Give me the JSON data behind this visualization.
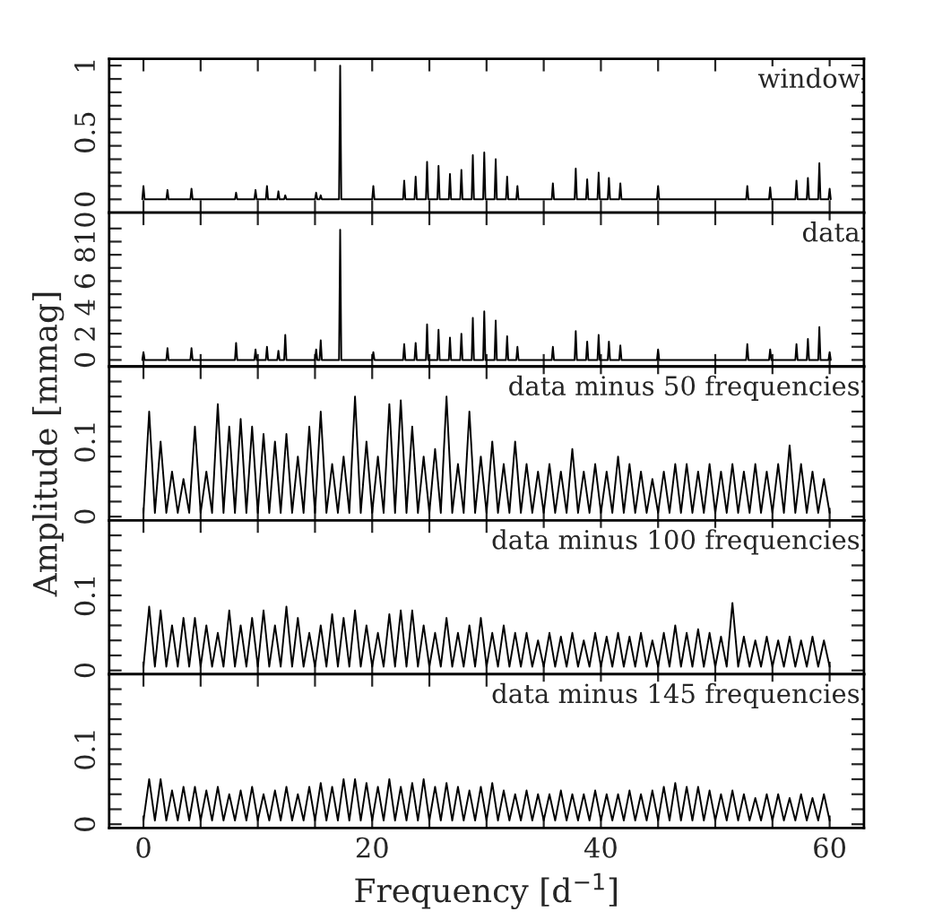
{
  "chart_data": [
    {
      "type": "line",
      "annotations": [
        "window"
      ],
      "tick_labels": "y",
      "xlim": [
        -3,
        63
      ],
      "ylim": [
        -0.1,
        1.05
      ],
      "xticks": [
        {
          "value": 0,
          "label": null
        },
        {
          "value": 5,
          "label": null
        },
        {
          "value": 10,
          "label": null
        },
        {
          "value": 15,
          "label": null
        },
        {
          "value": 20,
          "label": null
        },
        {
          "value": 25,
          "label": null
        },
        {
          "value": 30,
          "label": null
        },
        {
          "value": 35,
          "label": null
        },
        {
          "value": 40,
          "label": null
        },
        {
          "value": 45,
          "label": null
        },
        {
          "value": 50,
          "label": null
        },
        {
          "value": 55,
          "label": null
        },
        {
          "value": 60,
          "label": null
        }
      ],
      "yticks": [
        0,
        {
          "value": 0.1,
          "label": null
        },
        {
          "value": 0.2,
          "label": null
        },
        {
          "value": 0.3,
          "label": null
        },
        {
          "value": 0.4,
          "label": null
        },
        0.5,
        {
          "value": 0.6,
          "label": null
        },
        {
          "value": 0.7,
          "label": null
        },
        {
          "value": 0.8,
          "label": null
        },
        {
          "value": 0.9,
          "label": null
        },
        1
      ],
      "x": [
        -0.1,
        0,
        0.1,
        2,
        2.1,
        2.2,
        4.1,
        4.2,
        4.3,
        8,
        8.1,
        8.2,
        9.7,
        9.8,
        9.9,
        10.7,
        10.8,
        10.9,
        11.7,
        11.8,
        11.9,
        12.3,
        12.4,
        12.5,
        15,
        15.1,
        15.2,
        15.4,
        15.5,
        15.6,
        17.1,
        17.2,
        17.3,
        20,
        20.1,
        20.2,
        22.7,
        22.8,
        22.9,
        23.7,
        23.8,
        23.9,
        24.7,
        24.8,
        24.9,
        25.7,
        25.8,
        25.9,
        26.7,
        26.8,
        26.9,
        27.7,
        27.8,
        27.9,
        28.7,
        28.8,
        28.9,
        29.7,
        29.8,
        29.9,
        30.7,
        30.8,
        30.9,
        31.7,
        31.8,
        31.9,
        32.6,
        32.7,
        32.8,
        35.7,
        35.8,
        35.9,
        37.7,
        37.8,
        37.9,
        38.7,
        38.8,
        38.9,
        39.7,
        39.8,
        39.9,
        40.6,
        40.7,
        40.8,
        41.6,
        41.7,
        41.8,
        44.9,
        45,
        45.1,
        52.7,
        52.8,
        52.9,
        54.7,
        54.8,
        54.9,
        57,
        57.1,
        57.2,
        58,
        58.1,
        58.2,
        59,
        59.1,
        59.2,
        59.9,
        60,
        60.1
      ],
      "series": [
        {
          "color": "#000000",
          "values": [
            0,
            0.1,
            0,
            0,
            0.07,
            0,
            0,
            0.08,
            0,
            0,
            0.05,
            0,
            0,
            0.07,
            0,
            0,
            0.1,
            0,
            0,
            0.06,
            0,
            0,
            0.03,
            0,
            0,
            0.05,
            0,
            0,
            0.03,
            0,
            0,
            1,
            0,
            0,
            0.1,
            0,
            0,
            0.14,
            0,
            0,
            0.17,
            0,
            0,
            0.28,
            0,
            0,
            0.25,
            0,
            0,
            0.19,
            0,
            0,
            0.22,
            0,
            0,
            0.33,
            0,
            0,
            0.35,
            0,
            0,
            0.3,
            0,
            0,
            0.17,
            0,
            0,
            0.1,
            0,
            0,
            0.12,
            0,
            0,
            0.23,
            0,
            0,
            0.15,
            0,
            0,
            0.2,
            0,
            0,
            0.16,
            0,
            0,
            0.12,
            0,
            0,
            0.1,
            0,
            0,
            0.1,
            0,
            0,
            0.09,
            0,
            0,
            0.14,
            0,
            0,
            0.16,
            0,
            0,
            0.27,
            0,
            0,
            0.08,
            0
          ]
        }
      ]
    },
    {
      "type": "line",
      "annotations": [
        "data"
      ],
      "tick_labels": "y",
      "xlim": [
        -3,
        63
      ],
      "ylim": [
        -0.5,
        11.2
      ],
      "xticks": [
        {
          "value": 0,
          "label": null
        },
        {
          "value": 5,
          "label": null
        },
        {
          "value": 10,
          "label": null
        },
        {
          "value": 15,
          "label": null
        },
        {
          "value": 20,
          "label": null
        },
        {
          "value": 25,
          "label": null
        },
        {
          "value": 30,
          "label": null
        },
        {
          "value": 35,
          "label": null
        },
        {
          "value": 40,
          "label": null
        },
        {
          "value": 45,
          "label": null
        },
        {
          "value": 50,
          "label": null
        },
        {
          "value": 55,
          "label": null
        },
        {
          "value": 60,
          "label": null
        }
      ],
      "yticks": [
        0,
        {
          "value": 1,
          "label": null
        },
        2,
        {
          "value": 3,
          "label": null
        },
        4,
        {
          "value": 5,
          "label": null
        },
        6,
        {
          "value": 7,
          "label": null
        },
        8,
        {
          "value": 9,
          "label": null
        },
        10
      ],
      "x": [
        -0.1,
        0,
        0.1,
        2,
        2.1,
        2.2,
        4.1,
        4.2,
        4.3,
        8,
        8.1,
        8.2,
        9.7,
        9.8,
        9.9,
        10.7,
        10.8,
        10.9,
        11.7,
        11.8,
        11.9,
        12.3,
        12.4,
        12.5,
        15,
        15.1,
        15.2,
        15.4,
        15.5,
        15.6,
        17.1,
        17.2,
        17.3,
        20,
        20.1,
        20.2,
        22.7,
        22.8,
        22.9,
        23.7,
        23.8,
        23.9,
        24.7,
        24.8,
        24.9,
        25.7,
        25.8,
        25.9,
        26.7,
        26.8,
        26.9,
        27.7,
        27.8,
        27.9,
        28.7,
        28.8,
        28.9,
        29.7,
        29.8,
        29.9,
        30.7,
        30.8,
        30.9,
        31.7,
        31.8,
        31.9,
        32.6,
        32.7,
        32.8,
        35.7,
        35.8,
        35.9,
        37.7,
        37.8,
        37.9,
        38.7,
        38.8,
        38.9,
        39.7,
        39.8,
        39.9,
        40.6,
        40.7,
        40.8,
        41.6,
        41.7,
        41.8,
        44.9,
        45,
        45.1,
        52.7,
        52.8,
        52.9,
        54.7,
        54.8,
        54.9,
        57,
        57.1,
        57.2,
        58,
        58.1,
        58.2,
        59,
        59.1,
        59.2,
        59.9,
        60,
        60.1
      ],
      "series": [
        {
          "color": "#000000",
          "values": [
            0,
            0.6,
            0,
            0,
            0.9,
            0,
            0,
            0.9,
            0,
            0,
            1.3,
            0,
            0,
            0.8,
            0,
            0,
            1,
            0,
            0,
            0.7,
            0,
            0,
            1.9,
            0,
            0,
            0.8,
            0,
            0,
            1.5,
            0,
            0,
            9.9,
            0,
            0,
            0.6,
            0,
            0,
            1.2,
            0,
            0,
            1.3,
            0,
            0,
            2.7,
            0,
            0,
            2.3,
            0,
            0,
            1.7,
            0,
            0,
            2,
            0,
            0,
            3.2,
            0,
            0,
            3.7,
            0,
            0,
            3,
            0,
            0,
            1.8,
            0,
            0,
            1,
            0,
            0,
            1,
            0,
            0,
            2.2,
            0,
            0,
            1.4,
            0,
            0,
            1.9,
            0,
            0,
            1.4,
            0,
            0,
            1.1,
            0,
            0,
            0.8,
            0,
            0,
            1.2,
            0,
            0,
            0.8,
            0,
            0,
            1.2,
            0,
            0,
            1.6,
            0,
            0,
            2.5,
            0,
            0,
            0.6,
            0
          ]
        }
      ]
    },
    {
      "type": "line",
      "annotations": [
        "data minus 50 frequencies"
      ],
      "ylabel": "Amplitude [mmag]",
      "tick_labels": "y",
      "xlim": [
        -3,
        63
      ],
      "ylim": [
        -0.005,
        0.2
      ],
      "xticks": [
        {
          "value": 0,
          "label": null
        },
        {
          "value": 5,
          "label": null
        },
        {
          "value": 10,
          "label": null
        },
        {
          "value": 15,
          "label": null
        },
        {
          "value": 20,
          "label": null
        },
        {
          "value": 25,
          "label": null
        },
        {
          "value": 30,
          "label": null
        },
        {
          "value": 35,
          "label": null
        },
        {
          "value": 40,
          "label": null
        },
        {
          "value": 45,
          "label": null
        },
        {
          "value": 50,
          "label": null
        },
        {
          "value": 55,
          "label": null
        },
        {
          "value": 60,
          "label": null
        }
      ],
      "yticks": [
        0,
        {
          "value": 0.02,
          "label": null
        },
        {
          "value": 0.04,
          "label": null
        },
        {
          "value": 0.06,
          "label": null
        },
        {
          "value": 0.08,
          "label": null
        },
        0.1,
        {
          "value": 0.12,
          "label": null
        },
        {
          "value": 0.14,
          "label": null
        },
        {
          "value": 0.16,
          "label": null
        },
        {
          "value": 0.18,
          "label": null
        }
      ],
      "x": [
        0,
        0.5,
        1,
        1.5,
        2,
        2.5,
        3,
        3.5,
        4,
        4.5,
        5,
        5.5,
        6,
        6.5,
        7,
        7.5,
        8,
        8.5,
        9,
        9.5,
        10,
        10.5,
        11,
        11.5,
        12,
        12.5,
        13,
        13.5,
        14,
        14.5,
        15,
        15.5,
        16,
        16.5,
        17,
        17.5,
        18,
        18.5,
        19,
        19.5,
        20,
        20.5,
        21,
        21.5,
        22,
        22.5,
        23,
        23.5,
        24,
        24.5,
        25,
        25.5,
        26,
        26.5,
        27,
        27.5,
        28,
        28.5,
        29,
        29.5,
        30,
        30.5,
        31,
        31.5,
        32,
        32.5,
        33,
        33.5,
        34,
        34.5,
        35,
        35.5,
        36,
        36.5,
        37,
        37.5,
        38,
        38.5,
        39,
        39.5,
        40,
        40.5,
        41,
        41.5,
        42,
        42.5,
        43,
        43.5,
        44,
        44.5,
        45,
        45.5,
        46,
        46.5,
        47,
        47.5,
        48,
        48.5,
        49,
        49.5,
        50,
        50.5,
        51,
        51.5,
        52,
        52.5,
        53,
        53.5,
        54,
        54.5,
        55,
        55.5,
        56,
        56.5,
        57,
        57.5,
        58,
        58.5,
        59,
        59.5,
        60
      ],
      "series": [
        {
          "color": "#000000",
          "values": [
            0.005,
            0.14,
            0.005,
            0.1,
            0.005,
            0.06,
            0.005,
            0.05,
            0.005,
            0.12,
            0.005,
            0.06,
            0.005,
            0.15,
            0.005,
            0.12,
            0.005,
            0.13,
            0.005,
            0.12,
            0.005,
            0.11,
            0.005,
            0.1,
            0.005,
            0.11,
            0.005,
            0.08,
            0.005,
            0.12,
            0.005,
            0.14,
            0.005,
            0.07,
            0.005,
            0.08,
            0.005,
            0.16,
            0.005,
            0.1,
            0.005,
            0.08,
            0.005,
            0.15,
            0.005,
            0.155,
            0.005,
            0.12,
            0.005,
            0.08,
            0.005,
            0.09,
            0.005,
            0.16,
            0.005,
            0.07,
            0.005,
            0.14,
            0.005,
            0.08,
            0.005,
            0.1,
            0.005,
            0.07,
            0.005,
            0.1,
            0.005,
            0.07,
            0.005,
            0.06,
            0.005,
            0.07,
            0.005,
            0.06,
            0.005,
            0.09,
            0.005,
            0.06,
            0.005,
            0.07,
            0.005,
            0.06,
            0.005,
            0.08,
            0.005,
            0.07,
            0.005,
            0.06,
            0.005,
            0.05,
            0.005,
            0.06,
            0.005,
            0.07,
            0.005,
            0.07,
            0.005,
            0.06,
            0.005,
            0.07,
            0.005,
            0.06,
            0.005,
            0.07,
            0.005,
            0.06,
            0.005,
            0.07,
            0.005,
            0.06,
            0.005,
            0.07,
            0.005,
            0.095,
            0.005,
            0.07,
            0.005,
            0.06,
            0.005,
            0.05,
            0.005
          ]
        }
      ]
    },
    {
      "type": "line",
      "annotations": [
        "data minus 100 frequencies"
      ],
      "tick_labels": "y",
      "xlim": [
        -3,
        63
      ],
      "ylim": [
        -0.005,
        0.2
      ],
      "xticks": [
        {
          "value": 0,
          "label": null
        },
        {
          "value": 5,
          "label": null
        },
        {
          "value": 10,
          "label": null
        },
        {
          "value": 15,
          "label": null
        },
        {
          "value": 20,
          "label": null
        },
        {
          "value": 25,
          "label": null
        },
        {
          "value": 30,
          "label": null
        },
        {
          "value": 35,
          "label": null
        },
        {
          "value": 40,
          "label": null
        },
        {
          "value": 45,
          "label": null
        },
        {
          "value": 50,
          "label": null
        },
        {
          "value": 55,
          "label": null
        },
        {
          "value": 60,
          "label": null
        }
      ],
      "yticks": [
        0,
        {
          "value": 0.02,
          "label": null
        },
        {
          "value": 0.04,
          "label": null
        },
        {
          "value": 0.06,
          "label": null
        },
        {
          "value": 0.08,
          "label": null
        },
        0.1,
        {
          "value": 0.12,
          "label": null
        },
        {
          "value": 0.14,
          "label": null
        },
        {
          "value": 0.16,
          "label": null
        },
        {
          "value": 0.18,
          "label": null
        }
      ],
      "x": [
        0,
        0.5,
        1,
        1.5,
        2,
        2.5,
        3,
        3.5,
        4,
        4.5,
        5,
        5.5,
        6,
        6.5,
        7,
        7.5,
        8,
        8.5,
        9,
        9.5,
        10,
        10.5,
        11,
        11.5,
        12,
        12.5,
        13,
        13.5,
        14,
        14.5,
        15,
        15.5,
        16,
        16.5,
        17,
        17.5,
        18,
        18.5,
        19,
        19.5,
        20,
        20.5,
        21,
        21.5,
        22,
        22.5,
        23,
        23.5,
        24,
        24.5,
        25,
        25.5,
        26,
        26.5,
        27,
        27.5,
        28,
        28.5,
        29,
        29.5,
        30,
        30.5,
        31,
        31.5,
        32,
        32.5,
        33,
        33.5,
        34,
        34.5,
        35,
        35.5,
        36,
        36.5,
        37,
        37.5,
        38,
        38.5,
        39,
        39.5,
        40,
        40.5,
        41,
        41.5,
        42,
        42.5,
        43,
        43.5,
        44,
        44.5,
        45,
        45.5,
        46,
        46.5,
        47,
        47.5,
        48,
        48.5,
        49,
        49.5,
        50,
        50.5,
        51,
        51.5,
        52,
        52.5,
        53,
        53.5,
        54,
        54.5,
        55,
        55.5,
        56,
        56.5,
        57,
        57.5,
        58,
        58.5,
        59,
        59.5,
        60
      ],
      "series": [
        {
          "color": "#000000",
          "values": [
            0.005,
            0.085,
            0.005,
            0.08,
            0.005,
            0.06,
            0.005,
            0.07,
            0.005,
            0.07,
            0.005,
            0.06,
            0.005,
            0.05,
            0.005,
            0.08,
            0.005,
            0.06,
            0.005,
            0.07,
            0.005,
            0.08,
            0.005,
            0.06,
            0.005,
            0.085,
            0.005,
            0.07,
            0.005,
            0.05,
            0.005,
            0.06,
            0.005,
            0.075,
            0.005,
            0.07,
            0.005,
            0.08,
            0.005,
            0.06,
            0.005,
            0.05,
            0.005,
            0.075,
            0.005,
            0.08,
            0.005,
            0.08,
            0.005,
            0.06,
            0.005,
            0.05,
            0.005,
            0.07,
            0.005,
            0.05,
            0.005,
            0.06,
            0.005,
            0.07,
            0.005,
            0.05,
            0.005,
            0.06,
            0.005,
            0.05,
            0.005,
            0.05,
            0.005,
            0.04,
            0.005,
            0.05,
            0.005,
            0.045,
            0.005,
            0.05,
            0.005,
            0.04,
            0.005,
            0.05,
            0.005,
            0.045,
            0.005,
            0.05,
            0.005,
            0.045,
            0.005,
            0.05,
            0.005,
            0.04,
            0.005,
            0.05,
            0.005,
            0.06,
            0.005,
            0.05,
            0.005,
            0.055,
            0.005,
            0.05,
            0.005,
            0.045,
            0.005,
            0.09,
            0.005,
            0.045,
            0.005,
            0.04,
            0.005,
            0.045,
            0.005,
            0.04,
            0.005,
            0.045,
            0.005,
            0.04,
            0.005,
            0.045,
            0.005,
            0.04,
            0.005
          ]
        }
      ]
    },
    {
      "type": "line",
      "annotations": [
        "data minus 145 frequencies"
      ],
      "xlabel": "Frequency [d$^{−1}$]",
      "xlim": [
        -3,
        63
      ],
      "ylim": [
        -0.005,
        0.2
      ],
      "xticks": [
        0,
        {
          "value": 5,
          "label": null
        },
        {
          "value": 10,
          "label": null
        },
        {
          "value": 15,
          "label": null
        },
        20,
        {
          "value": 25,
          "label": null
        },
        {
          "value": 30,
          "label": null
        },
        {
          "value": 35,
          "label": null
        },
        40,
        {
          "value": 45,
          "label": null
        },
        {
          "value": 50,
          "label": null
        },
        {
          "value": 55,
          "label": null
        },
        60
      ],
      "yticks": [
        0,
        {
          "value": 0.02,
          "label": null
        },
        {
          "value": 0.04,
          "label": null
        },
        {
          "value": 0.06,
          "label": null
        },
        {
          "value": 0.08,
          "label": null
        },
        0.1,
        {
          "value": 0.12,
          "label": null
        },
        {
          "value": 0.14,
          "label": null
        },
        {
          "value": 0.16,
          "label": null
        },
        {
          "value": 0.18,
          "label": null
        }
      ],
      "x": [
        0,
        0.5,
        1,
        1.5,
        2,
        2.5,
        3,
        3.5,
        4,
        4.5,
        5,
        5.5,
        6,
        6.5,
        7,
        7.5,
        8,
        8.5,
        9,
        9.5,
        10,
        10.5,
        11,
        11.5,
        12,
        12.5,
        13,
        13.5,
        14,
        14.5,
        15,
        15.5,
        16,
        16.5,
        17,
        17.5,
        18,
        18.5,
        19,
        19.5,
        20,
        20.5,
        21,
        21.5,
        22,
        22.5,
        23,
        23.5,
        24,
        24.5,
        25,
        25.5,
        26,
        26.5,
        27,
        27.5,
        28,
        28.5,
        29,
        29.5,
        30,
        30.5,
        31,
        31.5,
        32,
        32.5,
        33,
        33.5,
        34,
        34.5,
        35,
        35.5,
        36,
        36.5,
        37,
        37.5,
        38,
        38.5,
        39,
        39.5,
        40,
        40.5,
        41,
        41.5,
        42,
        42.5,
        43,
        43.5,
        44,
        44.5,
        45,
        45.5,
        46,
        46.5,
        47,
        47.5,
        48,
        48.5,
        49,
        49.5,
        50,
        50.5,
        51,
        51.5,
        52,
        52.5,
        53,
        53.5,
        54,
        54.5,
        55,
        55.5,
        56,
        56.5,
        57,
        57.5,
        58,
        58.5,
        59,
        59.5,
        60
      ],
      "series": [
        {
          "color": "#000000",
          "values": [
            0.005,
            0.06,
            0.005,
            0.06,
            0.005,
            0.045,
            0.005,
            0.05,
            0.005,
            0.05,
            0.005,
            0.045,
            0.005,
            0.05,
            0.005,
            0.04,
            0.005,
            0.045,
            0.005,
            0.05,
            0.005,
            0.04,
            0.005,
            0.045,
            0.005,
            0.05,
            0.005,
            0.04,
            0.005,
            0.05,
            0.005,
            0.055,
            0.005,
            0.05,
            0.005,
            0.06,
            0.005,
            0.06,
            0.005,
            0.055,
            0.005,
            0.05,
            0.005,
            0.06,
            0.005,
            0.05,
            0.005,
            0.055,
            0.005,
            0.06,
            0.005,
            0.05,
            0.005,
            0.055,
            0.005,
            0.05,
            0.005,
            0.045,
            0.005,
            0.05,
            0.005,
            0.055,
            0.005,
            0.045,
            0.005,
            0.04,
            0.005,
            0.045,
            0.005,
            0.04,
            0.005,
            0.04,
            0.005,
            0.045,
            0.005,
            0.04,
            0.005,
            0.04,
            0.005,
            0.045,
            0.005,
            0.04,
            0.005,
            0.04,
            0.005,
            0.045,
            0.005,
            0.04,
            0.005,
            0.045,
            0.005,
            0.05,
            0.005,
            0.055,
            0.005,
            0.05,
            0.005,
            0.05,
            0.005,
            0.045,
            0.005,
            0.04,
            0.005,
            0.045,
            0.005,
            0.04,
            0.005,
            0.035,
            0.005,
            0.04,
            0.005,
            0.04,
            0.005,
            0.035,
            0.005,
            0.04,
            0.005,
            0.035,
            0.005,
            0.04,
            0.005
          ]
        }
      ]
    }
  ]
}
